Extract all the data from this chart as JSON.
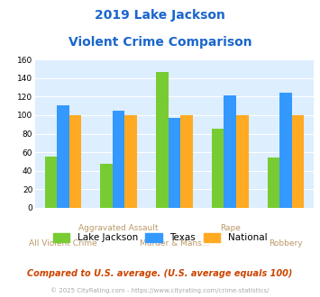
{
  "title_line1": "2019 Lake Jackson",
  "title_line2": "Violent Crime Comparison",
  "categories": [
    "All Violent Crime",
    "Aggravated Assault",
    "Murder & Mans...",
    "Rape",
    "Robbery"
  ],
  "series": {
    "Lake Jackson": [
      55,
      48,
      146,
      85,
      54
    ],
    "Texas": [
      111,
      105,
      97,
      121,
      124
    ],
    "National": [
      100,
      100,
      100,
      100,
      100
    ]
  },
  "colors": {
    "Lake Jackson": "#77cc33",
    "Texas": "#3399ff",
    "National": "#ffaa22"
  },
  "ylim": [
    0,
    160
  ],
  "yticks": [
    0,
    20,
    40,
    60,
    80,
    100,
    120,
    140,
    160
  ],
  "plot_bg": "#ddeeff",
  "title_color": "#1a66cc",
  "xlabel_color": "#bb9966",
  "footer_text": "Compared to U.S. average. (U.S. average equals 100)",
  "copyright_text": "© 2025 CityRating.com - https://www.cityrating.com/crime-statistics/",
  "footer_color": "#cc4400",
  "copyright_color": "#aaaaaa",
  "bar_width": 0.22
}
